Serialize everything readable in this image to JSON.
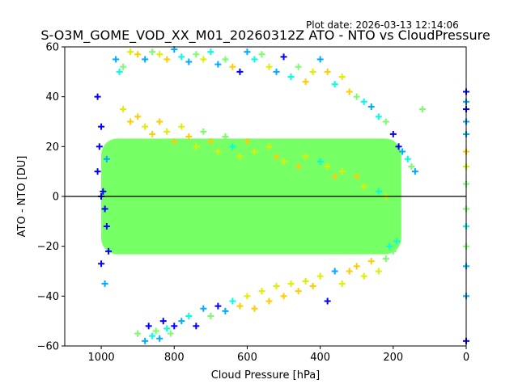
{
  "header": {
    "plot_date": "Plot date: 2026-03-13 12:14:06"
  },
  "chart_data": {
    "type": "scatter",
    "title": "S-O3M_GOME_VOD_XX_M01_20260312Z ATO - NTO vs CloudPressure",
    "xlabel": "Cloud Pressure [hPa]",
    "ylabel": "ATO - NTO [DU]",
    "xlim": [
      1100,
      0
    ],
    "ylim": [
      -60,
      60
    ],
    "x_inverted": true,
    "xticks": [
      1000,
      800,
      600,
      400,
      200,
      0
    ],
    "yticks": [
      -60,
      -40,
      -20,
      0,
      20,
      40,
      60
    ],
    "xtick_labels": [
      "1000",
      "800",
      "600",
      "400",
      "200",
      "0"
    ],
    "ytick_labels": [
      "−60",
      "−40",
      "−20",
      "0",
      "20",
      "40",
      "60"
    ],
    "reference_line_y": 0,
    "marker": "+",
    "color_classes": [
      "#0000ff",
      "#00aaff",
      "#00ffdd",
      "#77ff66",
      "#ddee00",
      "#ffcc00"
    ],
    "dense_core": {
      "x_range": [
        1000,
        200
      ],
      "y_range": [
        -20,
        20
      ],
      "color": "#77ff66"
    },
    "series": [
      {
        "name": "points",
        "x": [
          1000,
          1005,
          1010,
          995,
          990,
          985,
          980,
          1000,
          990,
          1010,
          1000,
          985,
          960,
          950,
          940,
          920,
          900,
          880,
          860,
          840,
          820,
          800,
          780,
          760,
          740,
          720,
          700,
          680,
          660,
          640,
          620,
          600,
          580,
          560,
          540,
          520,
          500,
          480,
          460,
          440,
          420,
          400,
          380,
          360,
          340,
          320,
          300,
          280,
          260,
          240,
          220,
          200,
          185,
          175,
          160,
          150,
          140,
          120,
          900,
          880,
          870,
          860,
          850,
          840,
          830,
          820,
          810,
          800,
          780,
          760,
          740,
          720,
          700,
          680,
          660,
          640,
          620,
          600,
          580,
          560,
          540,
          520,
          500,
          480,
          460,
          440,
          420,
          400,
          380,
          360,
          340,
          320,
          300,
          280,
          260,
          240,
          220,
          210,
          200,
          190,
          940,
          920,
          900,
          880,
          860,
          840,
          820,
          800,
          780,
          760,
          740,
          720,
          700,
          680,
          660,
          640,
          620,
          600,
          580,
          560,
          540,
          520,
          500,
          480,
          460,
          440,
          420,
          400,
          380,
          360,
          340,
          320,
          300,
          280,
          260,
          240,
          220,
          200,
          0,
          0,
          0,
          0,
          0,
          0,
          0,
          0,
          0,
          0,
          0,
          0,
          0,
          0
        ],
        "y": [
          28,
          20,
          10,
          2,
          -5,
          -12,
          -22,
          -27,
          -35,
          40,
          0,
          15,
          55,
          50,
          52,
          58,
          57,
          55,
          58,
          57,
          55,
          59,
          56,
          54,
          57,
          55,
          58,
          53,
          55,
          52,
          50,
          58,
          55,
          57,
          52,
          50,
          56,
          48,
          52,
          46,
          50,
          55,
          50,
          45,
          48,
          42,
          40,
          38,
          36,
          32,
          30,
          25,
          20,
          18,
          15,
          12,
          10,
          35,
          -55,
          -58,
          -52,
          -56,
          -54,
          -57,
          -50,
          -53,
          -55,
          -52,
          -50,
          -48,
          -52,
          -45,
          -48,
          -44,
          -46,
          -42,
          -44,
          -40,
          -45,
          -38,
          -42,
          -36,
          -40,
          -35,
          -38,
          -34,
          -36,
          -32,
          -42,
          -30,
          -35,
          -30,
          -28,
          -32,
          -26,
          -30,
          -25,
          -20,
          -22,
          -18,
          35,
          30,
          32,
          28,
          25,
          30,
          26,
          22,
          28,
          24,
          20,
          26,
          22,
          18,
          24,
          20,
          16,
          22,
          18,
          15,
          20,
          16,
          14,
          18,
          12,
          16,
          10,
          14,
          12,
          8,
          10,
          6,
          8,
          4,
          6,
          2,
          0,
          -4,
          42,
          38,
          35,
          30,
          25,
          18,
          12,
          5,
          -5,
          -12,
          -20,
          -28,
          -40,
          -58
        ],
        "c": [
          0,
          0,
          0,
          0,
          0,
          0,
          0,
          0,
          1,
          0,
          0,
          1,
          1,
          2,
          3,
          4,
          5,
          1,
          3,
          4,
          5,
          1,
          2,
          1,
          3,
          4,
          2,
          1,
          3,
          5,
          0,
          1,
          2,
          3,
          4,
          1,
          0,
          2,
          3,
          5,
          4,
          1,
          5,
          2,
          4,
          5,
          3,
          2,
          1,
          2,
          3,
          0,
          0,
          1,
          2,
          3,
          1,
          3,
          3,
          1,
          0,
          2,
          3,
          1,
          0,
          2,
          3,
          0,
          1,
          2,
          0,
          1,
          3,
          0,
          1,
          2,
          5,
          4,
          5,
          4,
          5,
          4,
          5,
          4,
          5,
          4,
          5,
          4,
          0,
          1,
          4,
          5,
          5,
          4,
          5,
          4,
          3,
          2,
          3,
          2,
          4,
          5,
          5,
          4,
          5,
          5,
          4,
          5,
          4,
          5,
          4,
          3,
          5,
          4,
          3,
          2,
          4,
          5,
          4,
          3,
          4,
          5,
          4,
          3,
          5,
          4,
          3,
          2,
          4,
          5,
          4,
          3,
          5,
          4,
          3,
          2,
          4,
          3,
          0,
          1,
          0,
          1,
          1,
          5,
          4,
          3,
          3,
          2,
          3,
          1,
          1,
          0
        ]
      }
    ]
  }
}
